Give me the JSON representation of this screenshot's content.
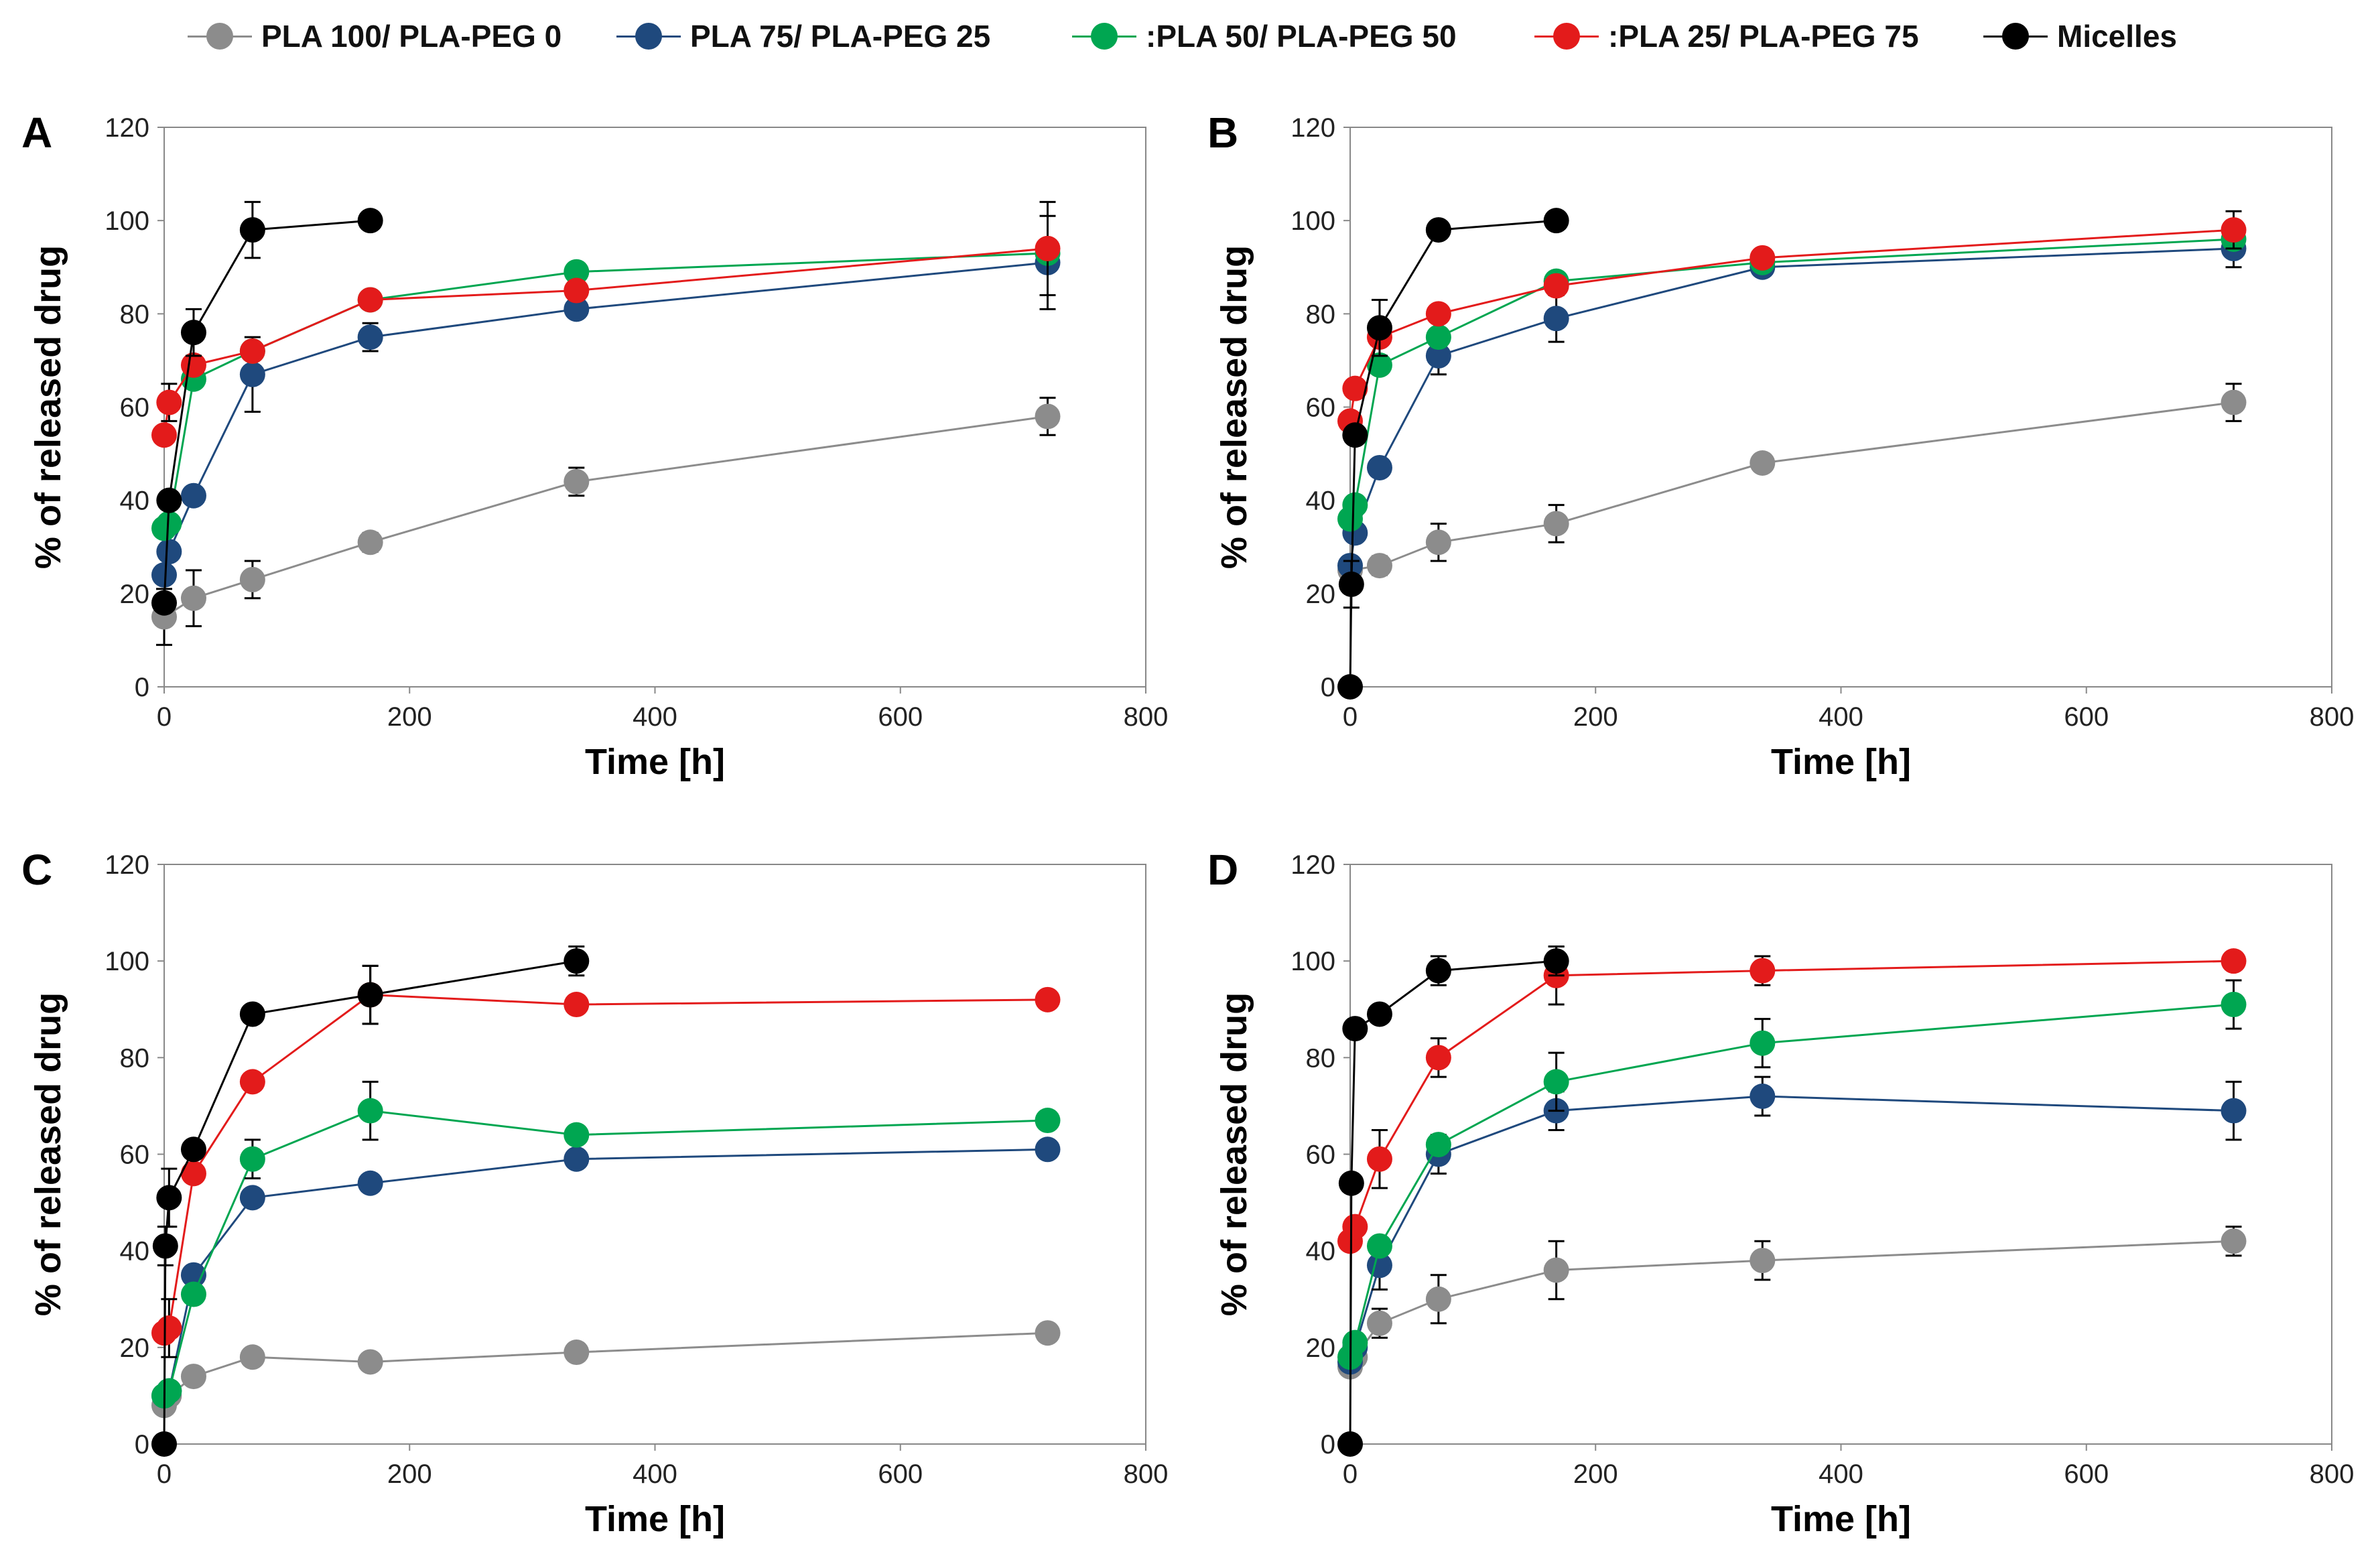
{
  "colors": {
    "PLA 100/ PLA-PEG 0": "#8c8c8c",
    "PLA 75/ PLA-PEG 25": "#1f497d",
    "PLA 50/ PLA-PEG 50": "#00a651",
    "PLA 25/ PLA-PEG 75": "#e31b1b",
    "Micelles": "#000000"
  },
  "legend": [
    {
      "label": "PLA 100/ PLA-PEG 0",
      "color": "#8c8c8c"
    },
    {
      "label": "PLA 75/ PLA-PEG 25",
      "color": "#1f497d"
    },
    {
      "label": ":PLA 50/ PLA-PEG 50",
      "color": "#00a651"
    },
    {
      "label": ":PLA 25/ PLA-PEG 75",
      "color": "#e31b1b"
    },
    {
      "label": "Micelles",
      "color": "#000000"
    }
  ],
  "chart_data": [
    {
      "type": "line",
      "panel": "A",
      "xlabel": "Time [h]",
      "ylabel": "% of released drug",
      "xlim": [
        0,
        800
      ],
      "ylim": [
        0,
        120
      ],
      "xticks": [
        0,
        200,
        400,
        600,
        800
      ],
      "yticks": [
        0,
        20,
        40,
        60,
        80,
        100,
        120
      ],
      "legend_position": "top",
      "series": [
        {
          "name": "PLA 100/ PLA-PEG 0",
          "x": [
            0,
            24,
            72,
            168,
            336,
            720
          ],
          "y": [
            15,
            19,
            23,
            31,
            44,
            58
          ],
          "err": [
            6,
            6,
            4,
            2,
            3,
            4
          ]
        },
        {
          "name": "PLA 75/ PLA-PEG 25",
          "x": [
            0,
            4,
            24,
            72,
            168,
            336,
            720
          ],
          "y": [
            24,
            29,
            41,
            67,
            75,
            81,
            91
          ],
          "err": [
            0,
            0,
            0,
            8,
            3,
            0,
            10
          ]
        },
        {
          "name": "PLA 50/ PLA-PEG 50",
          "x": [
            0,
            4,
            24,
            72,
            168,
            336,
            720
          ],
          "y": [
            34,
            35,
            66,
            72,
            83,
            89,
            93
          ],
          "err": [
            0,
            0,
            0,
            0,
            0,
            0,
            0
          ]
        },
        {
          "name": "PLA 25/ PLA-PEG 75",
          "x": [
            0,
            4,
            24,
            72,
            168,
            336,
            720
          ],
          "y": [
            54,
            61,
            69,
            72,
            83,
            85,
            94
          ],
          "err": [
            0,
            4,
            0,
            0,
            0,
            0,
            10
          ]
        },
        {
          "name": "Micelles",
          "x": [
            0,
            4,
            24,
            72,
            168
          ],
          "y": [
            18,
            40,
            76,
            98,
            100
          ],
          "err": [
            0,
            0,
            5,
            6,
            0
          ]
        }
      ]
    },
    {
      "type": "line",
      "panel": "B",
      "xlabel": "Time [h]",
      "ylabel": "% of released drug",
      "xlim": [
        0,
        800
      ],
      "ylim": [
        0,
        120
      ],
      "xticks": [
        0,
        200,
        400,
        600,
        800
      ],
      "yticks": [
        0,
        20,
        40,
        60,
        80,
        100,
        120
      ],
      "series": [
        {
          "name": "PLA 100/ PLA-PEG 0",
          "x": [
            0,
            24,
            72,
            168,
            336,
            720
          ],
          "y": [
            25,
            26,
            31,
            35,
            48,
            61
          ],
          "err": [
            0,
            2,
            4,
            4,
            0,
            4
          ]
        },
        {
          "name": "PLA 75/ PLA-PEG 25",
          "x": [
            0,
            4,
            24,
            72,
            168,
            336,
            720
          ],
          "y": [
            26,
            33,
            47,
            71,
            79,
            90,
            94
          ],
          "err": [
            0,
            0,
            0,
            4,
            5,
            0,
            4
          ]
        },
        {
          "name": "PLA 50/ PLA-PEG 50",
          "x": [
            0,
            4,
            24,
            72,
            168,
            336,
            720
          ],
          "y": [
            36,
            39,
            69,
            75,
            87,
            91,
            96
          ],
          "err": [
            0,
            0,
            0,
            0,
            0,
            0,
            0
          ]
        },
        {
          "name": "PLA 25/ PLA-PEG 75",
          "x": [
            0,
            4,
            24,
            72,
            168,
            336,
            720
          ],
          "y": [
            57,
            64,
            75,
            80,
            86,
            92,
            98
          ],
          "err": [
            0,
            0,
            0,
            0,
            0,
            0,
            4
          ]
        },
        {
          "name": "Micelles",
          "x": [
            0,
            1,
            4,
            24,
            72,
            168
          ],
          "y": [
            0,
            22,
            54,
            77,
            98,
            100
          ],
          "err": [
            0,
            5,
            0,
            6,
            0,
            0
          ]
        }
      ]
    },
    {
      "type": "line",
      "panel": "C",
      "xlabel": "Time [h]",
      "ylabel": "% of released drug",
      "xlim": [
        0,
        800
      ],
      "ylim": [
        0,
        120
      ],
      "xticks": [
        0,
        200,
        400,
        600,
        800
      ],
      "yticks": [
        0,
        20,
        40,
        60,
        80,
        100,
        120
      ],
      "series": [
        {
          "name": "PLA 100/ PLA-PEG 0",
          "x": [
            0,
            4,
            24,
            72,
            168,
            336,
            720
          ],
          "y": [
            8,
            10,
            14,
            18,
            17,
            19,
            23
          ],
          "err": [
            0,
            0,
            0,
            0,
            0,
            0,
            0
          ]
        },
        {
          "name": "PLA 75/ PLA-PEG 25",
          "x": [
            0,
            4,
            24,
            72,
            168,
            336,
            720
          ],
          "y": [
            10,
            11,
            35,
            51,
            54,
            59,
            61
          ],
          "err": [
            0,
            0,
            0,
            0,
            0,
            0,
            0
          ]
        },
        {
          "name": "PLA 50/ PLA-PEG 50",
          "x": [
            0,
            4,
            24,
            72,
            168,
            336,
            720
          ],
          "y": [
            10,
            11,
            31,
            59,
            69,
            64,
            67
          ],
          "err": [
            0,
            0,
            0,
            4,
            6,
            0,
            0
          ]
        },
        {
          "name": "PLA 25/ PLA-PEG 75",
          "x": [
            0,
            4,
            24,
            72,
            168,
            336,
            720
          ],
          "y": [
            23,
            24,
            56,
            75,
            93,
            91,
            92
          ],
          "err": [
            0,
            6,
            0,
            0,
            6,
            0,
            0
          ]
        },
        {
          "name": "Micelles",
          "x": [
            0,
            1,
            4,
            24,
            72,
            168,
            336
          ],
          "y": [
            0,
            41,
            51,
            61,
            89,
            93,
            100
          ],
          "err": [
            0,
            4,
            6,
            0,
            0,
            6,
            3
          ]
        }
      ]
    },
    {
      "type": "line",
      "panel": "D",
      "xlabel": "Time [h]",
      "ylabel": "% of released drug",
      "xlim": [
        0,
        800
      ],
      "ylim": [
        0,
        120
      ],
      "xticks": [
        0,
        200,
        400,
        600,
        800
      ],
      "yticks": [
        0,
        20,
        40,
        60,
        80,
        100,
        120
      ],
      "series": [
        {
          "name": "PLA 100/ PLA-PEG 0",
          "x": [
            0,
            4,
            24,
            72,
            168,
            336,
            720
          ],
          "y": [
            16,
            18,
            25,
            30,
            36,
            38,
            42
          ],
          "err": [
            0,
            0,
            3,
            5,
            6,
            4,
            3
          ]
        },
        {
          "name": "PLA 75/ PLA-PEG 25",
          "x": [
            0,
            4,
            24,
            72,
            168,
            336,
            720
          ],
          "y": [
            17,
            20,
            37,
            60,
            69,
            72,
            69
          ],
          "err": [
            0,
            0,
            5,
            4,
            4,
            4,
            6
          ]
        },
        {
          "name": "PLA 50/ PLA-PEG 50",
          "x": [
            0,
            4,
            24,
            72,
            168,
            336,
            720
          ],
          "y": [
            18,
            21,
            41,
            62,
            75,
            83,
            91
          ],
          "err": [
            0,
            0,
            0,
            0,
            6,
            5,
            5
          ]
        },
        {
          "name": "PLA 25/ PLA-PEG 75",
          "x": [
            0,
            4,
            24,
            72,
            168,
            336,
            720
          ],
          "y": [
            42,
            45,
            59,
            80,
            97,
            98,
            100
          ],
          "err": [
            0,
            0,
            6,
            4,
            6,
            3,
            0
          ]
        },
        {
          "name": "Micelles",
          "x": [
            0,
            1,
            4,
            24,
            72,
            168
          ],
          "y": [
            0,
            54,
            86,
            89,
            98,
            100
          ],
          "err": [
            0,
            0,
            0,
            0,
            3,
            3
          ]
        }
      ]
    }
  ]
}
